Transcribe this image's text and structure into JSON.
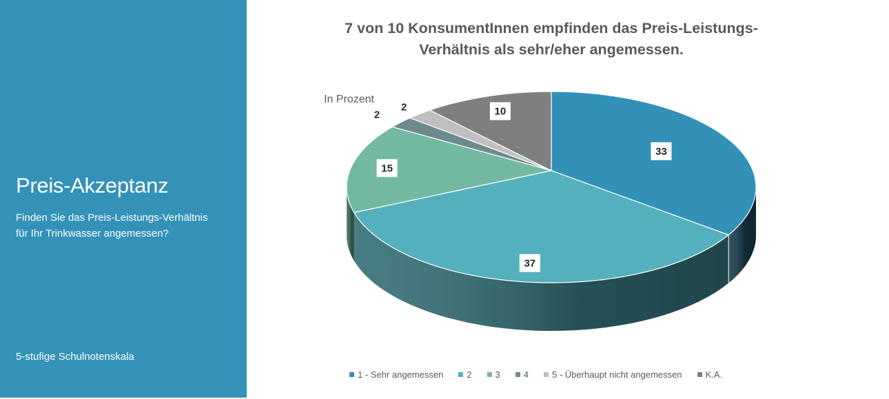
{
  "side_panel": {
    "title": "Preis-Akzeptanz",
    "question": "Finden Sie das Preis-Leistungs-Verhältnis für Ihr Trinkwasser angemessen?",
    "scale_note": "5-stufige Schulnotenskala",
    "background": "#3492b9"
  },
  "chart_data": {
    "type": "pie",
    "style": "3d",
    "title": "7 von 10 KonsumentInnen empfinden das Preis-Leistungs-Verhältnis als sehr/eher angemessen.",
    "unit_label": "In Prozent",
    "start_angle": "12 o'clock, clockwise",
    "legend_position": "bottom",
    "slices": [
      {
        "label": "1 - Sehr angemessen",
        "value": 33,
        "color": "#3391b8",
        "side": "#16394a"
      },
      {
        "label": "2",
        "value": 37,
        "color": "#55b0bd",
        "side": "#2f6b73"
      },
      {
        "label": "3",
        "value": 15,
        "color": "#73b9a2",
        "side": "#3f7060"
      },
      {
        "label": "4",
        "value": 2,
        "color": "#6e8a8e",
        "side": "#44575a"
      },
      {
        "label": "5 - Überhaupt nicht angemessen",
        "value": 2,
        "color": "#bfbfbf",
        "side": "#7f7f7f"
      },
      {
        "label": "K.A.",
        "value": 10,
        "color": "#7f7f7f",
        "side": "#4d4d4d"
      }
    ]
  }
}
